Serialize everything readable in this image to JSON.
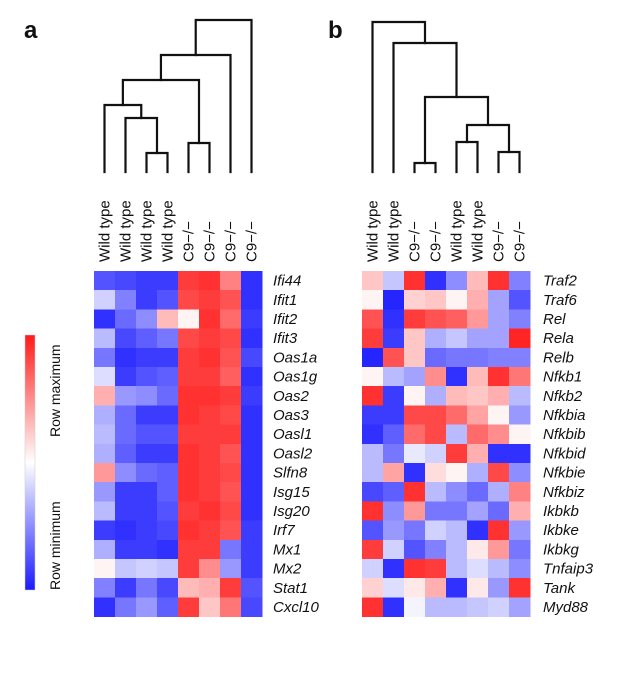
{
  "legend": {
    "min_label": "Row minimum",
    "max_label": "Row maximum",
    "colors": {
      "min": "#1a1aff",
      "mid": "#ffffff",
      "max": "#ff1a1a"
    }
  },
  "chart_data": [
    {
      "type": "heatmap",
      "panel": "a",
      "columns": [
        "Wild type",
        "Wild type",
        "Wild type",
        "Wild type",
        "C9−/−",
        "C9−/−",
        "C9−/−",
        "C9−/−"
      ],
      "rows": [
        "Ifi44",
        "Ifit1",
        "Ifit2",
        "Ifit3",
        "Oas1a",
        "Oas1g",
        "Oas2",
        "Oas3",
        "Oasl1",
        "Oasl2",
        "Slfn8",
        "Isg15",
        "Isg20",
        "Irf7",
        "Mx1",
        "Mx2",
        "Stat1",
        "Cxcl10"
      ],
      "scale": [
        -1,
        1
      ],
      "values": [
        [
          -0.75,
          -0.8,
          -0.85,
          -0.85,
          0.85,
          0.9,
          0.55,
          -0.9
        ],
        [
          -0.2,
          -0.55,
          -0.85,
          -0.75,
          0.8,
          0.85,
          0.75,
          -0.9
        ],
        [
          -0.9,
          -0.65,
          -0.5,
          0.3,
          0.05,
          0.9,
          0.65,
          -0.85
        ],
        [
          -0.3,
          -0.8,
          -0.7,
          -0.6,
          0.8,
          0.85,
          0.8,
          -0.9
        ],
        [
          -0.6,
          -0.9,
          -0.85,
          -0.85,
          0.85,
          0.9,
          0.75,
          -0.8
        ],
        [
          -0.15,
          -0.85,
          -0.75,
          -0.7,
          0.85,
          0.85,
          0.7,
          -0.9
        ],
        [
          0.35,
          -0.45,
          -0.5,
          -0.65,
          0.9,
          0.9,
          0.85,
          -0.85
        ],
        [
          -0.35,
          -0.65,
          -0.85,
          -0.85,
          0.9,
          0.85,
          0.8,
          -0.9
        ],
        [
          -0.3,
          -0.65,
          -0.75,
          -0.75,
          0.85,
          0.85,
          0.85,
          -0.9
        ],
        [
          -0.35,
          -0.7,
          -0.85,
          -0.85,
          0.9,
          0.85,
          0.75,
          -0.9
        ],
        [
          0.45,
          -0.5,
          -0.65,
          -0.7,
          0.9,
          0.85,
          0.8,
          -0.9
        ],
        [
          -0.45,
          -0.85,
          -0.85,
          -0.7,
          0.9,
          0.85,
          0.75,
          -0.9
        ],
        [
          -0.3,
          -0.85,
          -0.85,
          -0.75,
          0.85,
          0.9,
          0.8,
          -0.9
        ],
        [
          -0.85,
          -0.9,
          -0.85,
          -0.8,
          0.9,
          0.85,
          0.75,
          -0.85
        ],
        [
          -0.35,
          -0.85,
          -0.85,
          -0.9,
          0.85,
          0.85,
          -0.6,
          -0.85
        ],
        [
          0.05,
          -0.25,
          -0.2,
          -0.25,
          0.85,
          0.5,
          -0.45,
          -0.85
        ],
        [
          -0.55,
          -0.85,
          -0.6,
          -0.8,
          0.3,
          0.35,
          0.85,
          -0.75
        ],
        [
          -0.9,
          -0.6,
          -0.45,
          -0.7,
          0.85,
          0.25,
          0.6,
          -0.8
        ]
      ],
      "dendrogram": "((((Wild type 1, (Wild type 2, (Wild type 3, Wild type 4))), (C9−/− 1, C9−/− 2)), C9−/− 3), C9−/− 4)"
    },
    {
      "type": "heatmap",
      "panel": "b",
      "columns": [
        "Wild type",
        "Wild type",
        "C9−/−",
        "C9−/−",
        "Wild type",
        "Wild type",
        "C9−/−",
        "C9−/−"
      ],
      "rows": [
        "Traf2",
        "Traf6",
        "Rel",
        "Rela",
        "Relb",
        "Nfkb1",
        "Nfkb2",
        "Nfkbia",
        "Nfkbib",
        "Nfkbid",
        "Nfkbie",
        "Nfkbiz",
        "Ikbkb",
        "Ikbke",
        "Ikbkg",
        "Tnfaip3",
        "Tank",
        "Myd88"
      ],
      "scale": [
        -1,
        1
      ],
      "values": [
        [
          0.25,
          -0.25,
          0.9,
          -0.9,
          -0.5,
          0.3,
          0.9,
          -0.55
        ],
        [
          0.05,
          -0.95,
          0.2,
          0.25,
          0.05,
          0.35,
          -0.4,
          -0.75
        ],
        [
          0.75,
          -0.9,
          0.85,
          0.75,
          0.7,
          0.45,
          -0.4,
          -0.55
        ],
        [
          0.85,
          -0.85,
          0.25,
          -0.35,
          -0.25,
          -0.4,
          -0.4,
          0.95
        ],
        [
          -0.95,
          0.75,
          0.25,
          -0.65,
          -0.6,
          -0.6,
          -0.55,
          -0.55
        ],
        [
          0.05,
          -0.3,
          -0.4,
          0.5,
          -0.9,
          0.3,
          0.9,
          0.6
        ],
        [
          0.9,
          -0.85,
          0.05,
          -0.35,
          0.3,
          0.25,
          0.35,
          -0.3
        ],
        [
          -0.85,
          -0.85,
          0.8,
          0.8,
          0.65,
          0.4,
          0.05,
          -0.45
        ],
        [
          -0.9,
          -0.7,
          0.65,
          0.8,
          -0.3,
          0.65,
          0.5,
          0.05
        ],
        [
          -0.3,
          -0.6,
          -0.1,
          -0.2,
          0.85,
          0.35,
          -0.9,
          -0.9
        ],
        [
          -0.3,
          0.4,
          -0.9,
          0.15,
          0.05,
          -0.35,
          0.8,
          -0.5
        ],
        [
          -0.8,
          -0.7,
          0.9,
          -0.3,
          -0.5,
          -0.65,
          -0.35,
          0.55
        ],
        [
          0.9,
          -0.5,
          0.45,
          -0.6,
          -0.6,
          -0.4,
          -0.65,
          0.35
        ],
        [
          -0.75,
          -0.45,
          -0.6,
          -0.2,
          -0.3,
          -0.9,
          0.9,
          -0.45
        ],
        [
          0.85,
          -0.2,
          -0.75,
          -0.55,
          -0.3,
          0.1,
          0.45,
          -0.6
        ],
        [
          -0.2,
          -0.9,
          0.9,
          0.85,
          -0.3,
          -0.15,
          -0.3,
          -0.5
        ],
        [
          0.2,
          -0.15,
          0.1,
          0.35,
          -0.9,
          0.1,
          -0.45,
          0.9
        ],
        [
          0.9,
          -0.9,
          -0.05,
          -0.3,
          -0.3,
          -0.25,
          -0.2,
          -0.4
        ]
      ],
      "dendrogram": "((Wild type 1, (Wild type 2, ((C9−/− 1, C9−/− 2), ((Wild type 3, Wild type 4), (C9−/− 3, C9−/− 4))))))"
    }
  ]
}
